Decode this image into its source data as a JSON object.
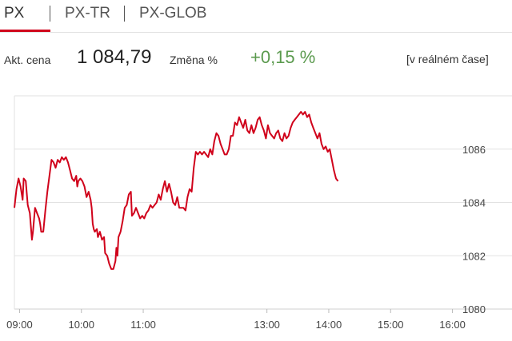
{
  "tabs": [
    {
      "label": "PX",
      "active": true
    },
    {
      "label": "PX-TR",
      "active": false
    },
    {
      "label": "PX-GLOB",
      "active": false
    }
  ],
  "quote": {
    "price_label": "Akt. cena",
    "price": "1 084,79",
    "change_label": "Změna %",
    "change": "+0,15 %",
    "realtime_label": "[v reálném čase]"
  },
  "colors": {
    "accent": "#d0021b",
    "line": "#d0021b",
    "positive": "#5b9a4e",
    "grid": "#e2e2e2"
  },
  "chart_data": {
    "type": "line",
    "title": "",
    "xlabel": "",
    "ylabel": "",
    "x_tick_labels": [
      "09:00",
      "10:00",
      "11:00",
      "13:00",
      "14:00",
      "15:00",
      "16:00"
    ],
    "x_tick_minutes": [
      540,
      600,
      660,
      780,
      840,
      900,
      960
    ],
    "y_tick_labels": [
      "1080",
      "1082",
      "1084",
      "1086"
    ],
    "y_ticks": [
      1080,
      1082,
      1084,
      1086
    ],
    "ylim": [
      1080,
      1088
    ],
    "xlim_minutes": [
      535,
      965
    ],
    "grid": true,
    "legend": "none",
    "series": [
      {
        "values": [
          [
            535,
            1083.8
          ],
          [
            537,
            1084.5
          ],
          [
            539,
            1084.9
          ],
          [
            541,
            1084.6
          ],
          [
            543,
            1084.1
          ],
          [
            544,
            1084.9
          ],
          [
            546,
            1084.8
          ],
          [
            548,
            1083.9
          ],
          [
            550,
            1083.6
          ],
          [
            551,
            1083.1
          ],
          [
            552,
            1082.6
          ],
          [
            553,
            1082.9
          ],
          [
            555,
            1083.8
          ],
          [
            557,
            1083.6
          ],
          [
            559,
            1083.4
          ],
          [
            560,
            1083.2
          ],
          [
            561,
            1082.9
          ],
          [
            563,
            1082.9
          ],
          [
            565,
            1083.7
          ],
          [
            567,
            1084.4
          ],
          [
            569,
            1085.0
          ],
          [
            571,
            1085.6
          ],
          [
            573,
            1085.5
          ],
          [
            575,
            1085.3
          ],
          [
            577,
            1085.6
          ],
          [
            579,
            1085.5
          ],
          [
            581,
            1085.7
          ],
          [
            583,
            1085.6
          ],
          [
            585,
            1085.7
          ],
          [
            587,
            1085.5
          ],
          [
            589,
            1085.2
          ],
          [
            591,
            1084.9
          ],
          [
            593,
            1084.8
          ],
          [
            595,
            1085.0
          ],
          [
            596,
            1084.6
          ],
          [
            597,
            1084.8
          ],
          [
            599,
            1084.9
          ],
          [
            601,
            1084.8
          ],
          [
            603,
            1084.6
          ],
          [
            605,
            1084.2
          ],
          [
            607,
            1084.4
          ],
          [
            609,
            1084.1
          ],
          [
            610,
            1083.8
          ],
          [
            611,
            1083.2
          ],
          [
            612,
            1083.0
          ],
          [
            613,
            1082.9
          ],
          [
            615,
            1083.0
          ],
          [
            616,
            1082.7
          ],
          [
            618,
            1082.9
          ],
          [
            620,
            1082.6
          ],
          [
            622,
            1082.7
          ],
          [
            623,
            1082.1
          ],
          [
            625,
            1082.0
          ],
          [
            627,
            1081.7
          ],
          [
            629,
            1081.5
          ],
          [
            631,
            1081.5
          ],
          [
            633,
            1081.8
          ],
          [
            634,
            1082.3
          ],
          [
            635,
            1082.0
          ],
          [
            636,
            1082.7
          ],
          [
            638,
            1082.9
          ],
          [
            640,
            1083.3
          ],
          [
            642,
            1083.8
          ],
          [
            644,
            1083.9
          ],
          [
            646,
            1084.3
          ],
          [
            648,
            1084.4
          ],
          [
            649,
            1083.5
          ],
          [
            651,
            1083.6
          ],
          [
            653,
            1083.8
          ],
          [
            655,
            1083.6
          ],
          [
            657,
            1083.4
          ],
          [
            659,
            1083.5
          ],
          [
            661,
            1083.4
          ],
          [
            663,
            1083.6
          ],
          [
            665,
            1083.7
          ],
          [
            667,
            1083.9
          ],
          [
            669,
            1083.8
          ],
          [
            671,
            1083.9
          ],
          [
            673,
            1084.0
          ],
          [
            675,
            1084.3
          ],
          [
            677,
            1084.1
          ],
          [
            679,
            1084.5
          ],
          [
            681,
            1084.8
          ],
          [
            683,
            1084.4
          ],
          [
            685,
            1084.7
          ],
          [
            687,
            1084.4
          ],
          [
            689,
            1084.0
          ],
          [
            691,
            1083.9
          ],
          [
            693,
            1084.2
          ],
          [
            695,
            1083.8
          ],
          [
            697,
            1083.8
          ],
          [
            699,
            1083.8
          ],
          [
            701,
            1083.7
          ],
          [
            703,
            1084.2
          ],
          [
            705,
            1084.5
          ],
          [
            707,
            1084.4
          ],
          [
            709,
            1085.3
          ],
          [
            711,
            1085.9
          ],
          [
            713,
            1085.8
          ],
          [
            715,
            1085.9
          ],
          [
            717,
            1085.8
          ],
          [
            719,
            1085.9
          ],
          [
            721,
            1085.8
          ],
          [
            723,
            1085.7
          ],
          [
            725,
            1086.0
          ],
          [
            727,
            1085.8
          ],
          [
            729,
            1086.3
          ],
          [
            731,
            1086.6
          ],
          [
            733,
            1086.5
          ],
          [
            735,
            1086.2
          ],
          [
            737,
            1086.0
          ],
          [
            739,
            1085.8
          ],
          [
            741,
            1085.8
          ],
          [
            743,
            1086.0
          ],
          [
            745,
            1086.5
          ],
          [
            747,
            1086.5
          ],
          [
            749,
            1087.0
          ],
          [
            751,
            1086.9
          ],
          [
            753,
            1087.2
          ],
          [
            755,
            1087.0
          ],
          [
            757,
            1086.8
          ],
          [
            759,
            1087.1
          ],
          [
            761,
            1086.7
          ],
          [
            763,
            1086.6
          ],
          [
            765,
            1086.9
          ],
          [
            767,
            1086.6
          ],
          [
            769,
            1086.8
          ],
          [
            771,
            1087.1
          ],
          [
            773,
            1087.2
          ],
          [
            775,
            1086.9
          ],
          [
            777,
            1086.7
          ],
          [
            779,
            1086.4
          ],
          [
            781,
            1086.9
          ],
          [
            783,
            1086.6
          ],
          [
            785,
            1086.5
          ],
          [
            787,
            1086.4
          ],
          [
            789,
            1086.6
          ],
          [
            791,
            1086.7
          ],
          [
            793,
            1086.4
          ],
          [
            795,
            1086.3
          ],
          [
            797,
            1086.6
          ],
          [
            799,
            1086.4
          ],
          [
            801,
            1086.5
          ],
          [
            803,
            1086.8
          ],
          [
            805,
            1087.0
          ],
          [
            807,
            1087.1
          ],
          [
            809,
            1087.2
          ],
          [
            811,
            1087.3
          ],
          [
            813,
            1087.4
          ],
          [
            815,
            1087.3
          ],
          [
            817,
            1087.4
          ],
          [
            819,
            1087.2
          ],
          [
            821,
            1087.3
          ],
          [
            823,
            1087.0
          ],
          [
            825,
            1086.8
          ],
          [
            827,
            1086.6
          ],
          [
            829,
            1086.4
          ],
          [
            831,
            1086.6
          ],
          [
            833,
            1086.2
          ],
          [
            835,
            1086.0
          ],
          [
            837,
            1086.1
          ],
          [
            839,
            1085.9
          ],
          [
            841,
            1086.0
          ],
          [
            843,
            1085.6
          ],
          [
            845,
            1085.2
          ],
          [
            847,
            1084.9
          ],
          [
            849,
            1084.8
          ]
        ]
      }
    ]
  }
}
